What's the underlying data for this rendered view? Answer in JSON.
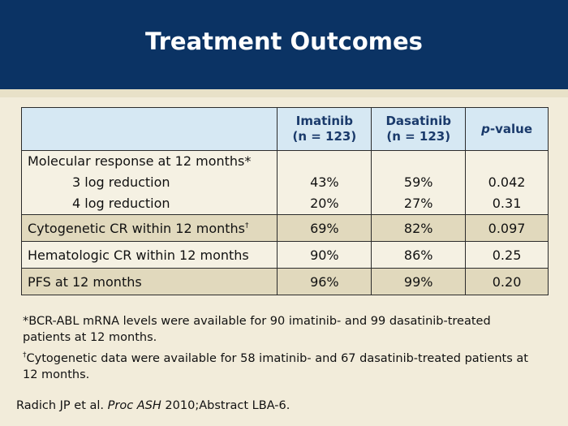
{
  "slide": {
    "title": "Treatment Outcomes"
  },
  "table": {
    "headers": {
      "imatinib_line1": "Imatinib",
      "imatinib_line2": "(n = 123)",
      "dasatinib_line1": "Dasatinib",
      "dasatinib_line2": "(n = 123)",
      "pvalue_p": "p",
      "pvalue_rest": "-value"
    },
    "molecular": {
      "label": "Molecular response at 12 months*",
      "rows": [
        {
          "label": "3 log reduction",
          "imatinib": "43%",
          "dasatinib": "59%",
          "p": "0.042"
        },
        {
          "label": "4 log reduction",
          "imatinib": "20%",
          "dasatinib": "27%",
          "p": "0.31"
        }
      ]
    },
    "cytogenetic": {
      "label": "Cytogenetic CR within 12 months",
      "mark": "†",
      "imatinib": "69%",
      "dasatinib": "82%",
      "p": "0.097"
    },
    "hematologic": {
      "label": "Hematologic CR within 12 months",
      "imatinib": "90%",
      "dasatinib": "86%",
      "p": "0.25"
    },
    "pfs": {
      "label": "PFS at 12 months",
      "imatinib": "96%",
      "dasatinib": "99%",
      "p": "0.20"
    }
  },
  "footnotes": {
    "note1": "*BCR-ABL mRNA levels were available for 90 imatinib- and 99 dasatinib-treated patients at 12 months.",
    "note2_mark": "†",
    "note2": "Cytogenetic data were available for 58 imatinib- and 67 dasatinib-treated patients at 12 months."
  },
  "citation": {
    "authors": "Radich JP et al. ",
    "journal": "Proc ASH",
    "rest": " 2010;Abstract LBA-6."
  }
}
